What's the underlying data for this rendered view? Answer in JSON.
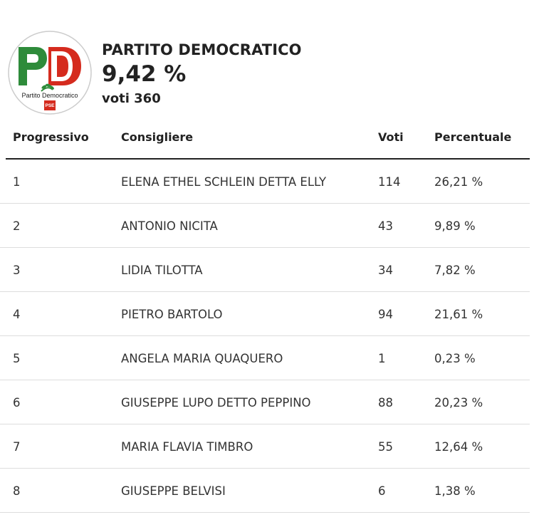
{
  "party": {
    "name": "PARTITO DEMOCRATICO",
    "percentage": "9,42 %",
    "votes": "voti 360",
    "logo": {
      "letters": "PD",
      "caption": "Partito Democratico",
      "badge": "PSE",
      "colors": {
        "green": "#2e8b3a",
        "white": "#ffffff",
        "red": "#d52b1e"
      }
    }
  },
  "table": {
    "headers": [
      "Progressivo",
      "Consigliere",
      "Voti",
      "Percentuale"
    ],
    "rows": [
      {
        "n": "1",
        "name": "ELENA ETHEL SCHLEIN DETTA ELLY",
        "votes": "114",
        "pct": "26,21 %"
      },
      {
        "n": "2",
        "name": "ANTONIO NICITA",
        "votes": "43",
        "pct": "9,89 %"
      },
      {
        "n": "3",
        "name": "LIDIA TILOTTA",
        "votes": "34",
        "pct": "7,82 %"
      },
      {
        "n": "4",
        "name": "PIETRO BARTOLO",
        "votes": "94",
        "pct": "21,61 %"
      },
      {
        "n": "5",
        "name": "ANGELA MARIA QUAQUERO",
        "votes": "1",
        "pct": "0,23 %"
      },
      {
        "n": "6",
        "name": "GIUSEPPE LUPO DETTO PEPPINO",
        "votes": "88",
        "pct": "20,23 %"
      },
      {
        "n": "7",
        "name": "MARIA FLAVIA TIMBRO",
        "votes": "55",
        "pct": "12,64 %"
      },
      {
        "n": "8",
        "name": "GIUSEPPE BELVISI",
        "votes": "6",
        "pct": "1,38 %"
      }
    ]
  }
}
